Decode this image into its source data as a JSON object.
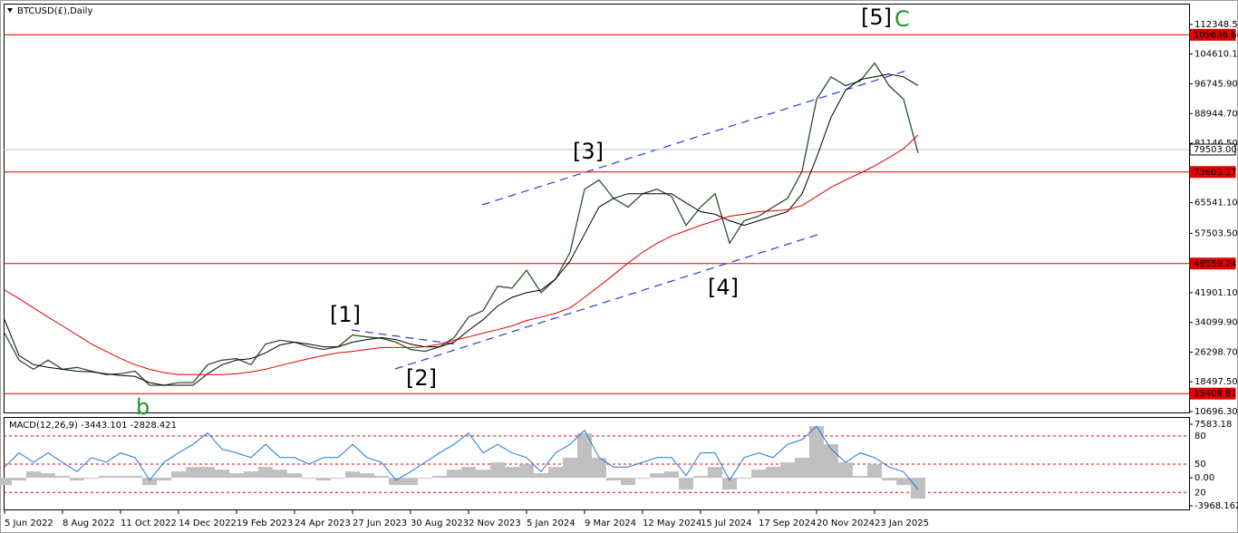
{
  "chart_data": [
    {
      "type": "line",
      "title": "BTCUSD(£),Daily",
      "categories": [
        "5 Jun 2022",
        null,
        null,
        null,
        "8 Aug 2022",
        null,
        null,
        null,
        "11 Oct 2022",
        null,
        null,
        null,
        "14 Dec 2022",
        null,
        null,
        null,
        "19 Feb 2023",
        null,
        null,
        null,
        "24 Apr 2023",
        null,
        null,
        null,
        "27 Jun 2023",
        null,
        null,
        null,
        "30 Aug 2023",
        null,
        null,
        null,
        "2 Nov 2023",
        null,
        null,
        null,
        "5 Jan 2024",
        null,
        null,
        null,
        "9 Mar 2024",
        null,
        null,
        null,
        "12 May 2024",
        null,
        null,
        null,
        "15 Jul 2024",
        null,
        null,
        null,
        "17 Sep 2024",
        null,
        null,
        null,
        "20 Nov 2024",
        null,
        null,
        null,
        "23 Jan 2025",
        null,
        null,
        null
      ],
      "series": [
        {
          "color": "#2f4f2f",
          "values": [
            31300,
            24200,
            21800,
            24200,
            21800,
            22300,
            21300,
            20400,
            20600,
            21300,
            17600,
            17600,
            18300,
            18300,
            23000,
            24200,
            24600,
            23000,
            28400,
            29400,
            28900,
            27700,
            27000,
            27700,
            30800,
            30300,
            29900,
            28900,
            27000,
            26500,
            27700,
            30100,
            35500,
            37200,
            43600,
            43100,
            47800,
            41900,
            45500,
            52500,
            69100,
            71500,
            66700,
            64400,
            67900,
            69100,
            67200,
            59600,
            64400,
            67900,
            54900,
            60800,
            62000,
            64400,
            66700,
            73800,
            92700,
            98600,
            96300,
            97500,
            102200,
            96300,
            92700,
            78600
          ]
        },
        {
          "color": "#000000",
          "values": [
            34800,
            25400,
            23000,
            22300,
            21800,
            21300,
            21100,
            20600,
            20200,
            19900,
            18300,
            17600,
            17600,
            17600,
            20600,
            23000,
            24200,
            24600,
            26100,
            28200,
            28900,
            28400,
            27700,
            27700,
            28900,
            29600,
            30100,
            29600,
            28400,
            27700,
            27700,
            28900,
            32000,
            34800,
            38400,
            40700,
            41900,
            42600,
            45500,
            50200,
            57300,
            64400,
            66700,
            67900,
            67900,
            67900,
            67900,
            65500,
            63200,
            62500,
            60800,
            59600,
            60800,
            62000,
            63200,
            67900,
            77400,
            88000,
            95100,
            97900,
            98600,
            99300,
            98600,
            96300
          ]
        },
        {
          "color": "#e00000",
          "values": [
            42600,
            40300,
            37900,
            35500,
            33200,
            30800,
            28400,
            26500,
            24600,
            23000,
            21800,
            20900,
            20400,
            20400,
            20400,
            20400,
            20600,
            21100,
            21800,
            22800,
            23700,
            24600,
            25400,
            26100,
            26500,
            27000,
            27500,
            27500,
            27500,
            27700,
            28400,
            29400,
            30300,
            31300,
            32200,
            33200,
            34600,
            35500,
            36500,
            37900,
            40700,
            43600,
            46600,
            49700,
            52500,
            54900,
            56800,
            58200,
            59600,
            60800,
            62000,
            62500,
            63200,
            63400,
            63700,
            64800,
            67200,
            69600,
            71500,
            73300,
            75200,
            77400,
            79700,
            83300
          ]
        }
      ],
      "levels": [
        {
          "value": 109636.6,
          "label": "109636.60",
          "color": "#e00000"
        },
        {
          "value": 79503,
          "label": "79503.00",
          "color": "#c0c0c0"
        },
        {
          "value": 73603.27,
          "color": "#e00000"
        },
        {
          "value": 49559.24,
          "color": "#e00000"
        },
        {
          "value": 15408.81,
          "color": "#e00000"
        }
      ],
      "annotations": [
        "[5]",
        "C",
        "[3]",
        "[1]",
        "[2]",
        "[4]",
        "b"
      ],
      "ylim": [
        10458,
        117824
      ],
      "yticks": [
        {
          "value": 112348.5,
          "label": "112348.50"
        },
        {
          "value": 104610.1,
          "label": "104610.10"
        },
        {
          "value": 96745.9,
          "label": "96745.90"
        },
        {
          "value": 88944.7,
          "label": "88944.70"
        },
        {
          "value": 81146.5,
          "label": "81146.50"
        },
        {
          "value": 65541.1,
          "label": "65541.10"
        },
        {
          "value": 57503.5,
          "label": "57503.50"
        },
        {
          "value": 41901.1,
          "label": "41901.10"
        },
        {
          "value": 34099.9,
          "label": "34099.90"
        },
        {
          "value": 26298.7,
          "label": "26298.70"
        },
        {
          "value": 18497.5,
          "label": "18497.50"
        },
        {
          "value": 10696.3,
          "label": "10696.30"
        }
      ]
    },
    {
      "type": "macd",
      "title": "MACD(12,26,9) -3443.101 -2828.421",
      "series": [
        {
          "style": "bar",
          "color": "#c0c0c0",
          "values": [
            -1030,
            -380,
            900,
            640,
            260,
            -380,
            -130,
            260,
            260,
            260,
            -1030,
            -380,
            900,
            1540,
            1540,
            1150,
            640,
            900,
            1540,
            1150,
            640,
            -130,
            -380,
            -130,
            900,
            640,
            260,
            -1030,
            -1030,
            -130,
            260,
            1150,
            1540,
            1150,
            2180,
            1540,
            1920,
            640,
            1540,
            2820,
            6290,
            2820,
            -380,
            -1030,
            -130,
            640,
            900,
            -1670,
            260,
            1540,
            -1670,
            -130,
            1150,
            1540,
            2180,
            2820,
            7310,
            4750,
            2180,
            260,
            1920,
            -380,
            -1030,
            -2950
          ]
        },
        {
          "style": "line",
          "axis": "y2",
          "color": "#1e78d2",
          "values": [
            47,
            62,
            52,
            62,
            52,
            42,
            57,
            52,
            62,
            57,
            33,
            52,
            62,
            71,
            83,
            66,
            62,
            57,
            71,
            57,
            57,
            50,
            57,
            57,
            71,
            57,
            52,
            33,
            42,
            52,
            62,
            71,
            83,
            62,
            71,
            62,
            57,
            42,
            62,
            71,
            86,
            57,
            47,
            47,
            52,
            57,
            57,
            38,
            62,
            62,
            33,
            57,
            62,
            57,
            71,
            76,
            90,
            66,
            52,
            62,
            57,
            47,
            42,
            23
          ]
        }
      ],
      "ylim": [
        -4480,
        8610
      ],
      "yticks": [
        7583.18,
        {
          "value": 0,
          "label": "0.00"
        },
        -3968.162
      ],
      "y2lim": [
        2,
        100
      ],
      "y2ticks": [
        80,
        50,
        20
      ],
      "grid_color": "#e00000"
    }
  ]
}
